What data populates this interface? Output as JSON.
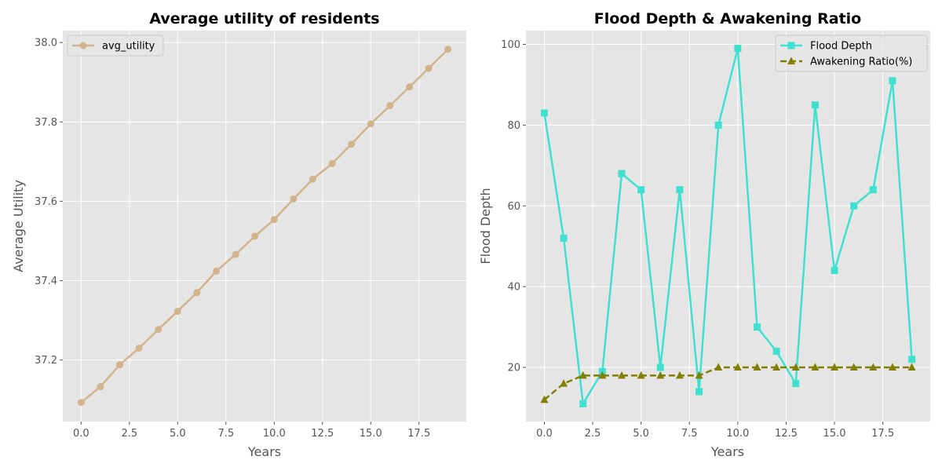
{
  "chart_data": [
    {
      "type": "line",
      "title": "Average utility of residents",
      "xlabel": "Years",
      "ylabel": "Average Utility",
      "xlim": [
        -0.95,
        19.95
      ],
      "ylim": [
        37.045,
        38.03
      ],
      "xticks": [
        0,
        2.5,
        5,
        7.5,
        10,
        12.5,
        15,
        17.5
      ],
      "xtick_labels": [
        "0.0",
        "2.5",
        "5.0",
        "7.5",
        "10.0",
        "12.5",
        "15.0",
        "17.5"
      ],
      "yticks": [
        37.2,
        37.4,
        37.6,
        37.8,
        38.0
      ],
      "ytick_labels": [
        "37.2",
        "37.4",
        "37.6",
        "37.8",
        "38.0"
      ],
      "grid": true,
      "legend_position": "upper-left",
      "x": [
        0,
        1,
        2,
        3,
        4,
        5,
        6,
        7,
        8,
        9,
        10,
        11,
        12,
        13,
        14,
        15,
        16,
        17,
        18,
        19
      ],
      "series": [
        {
          "name": "avg_utility",
          "color": "#d2b48c",
          "linestyle": "solid",
          "marker": "circle",
          "values": [
            37.093,
            37.133,
            37.188,
            37.23,
            37.277,
            37.323,
            37.37,
            37.424,
            37.466,
            37.512,
            37.554,
            37.606,
            37.656,
            37.695,
            37.744,
            37.795,
            37.841,
            37.888,
            37.935,
            37.983
          ]
        }
      ]
    },
    {
      "type": "line",
      "title": "Flood Depth & Awakening Ratio",
      "xlabel": "Years",
      "ylabel": "Flood Depth",
      "xlim": [
        -0.95,
        19.95
      ],
      "ylim": [
        6.6,
        103.4
      ],
      "xticks": [
        0,
        2.5,
        5,
        7.5,
        10,
        12.5,
        15,
        17.5
      ],
      "xtick_labels": [
        "0.0",
        "2.5",
        "5.0",
        "7.5",
        "10.0",
        "12.5",
        "15.0",
        "17.5"
      ],
      "yticks": [
        20,
        40,
        60,
        80,
        100
      ],
      "ytick_labels": [
        "20",
        "40",
        "60",
        "80",
        "100"
      ],
      "grid": true,
      "legend_position": "upper-right",
      "x": [
        0,
        1,
        2,
        3,
        4,
        5,
        6,
        7,
        8,
        9,
        10,
        11,
        12,
        13,
        14,
        15,
        16,
        17,
        18,
        19
      ],
      "series": [
        {
          "name": "Flood Depth",
          "color": "#40e0d0",
          "linestyle": "solid",
          "marker": "square",
          "values": [
            83,
            52,
            11,
            19,
            68,
            64,
            20,
            64,
            14,
            80,
            99,
            30,
            24,
            16,
            85,
            44,
            60,
            64,
            91,
            22
          ]
        },
        {
          "name": "Awakening Ratio(%)",
          "color": "#808000",
          "linestyle": "dashed",
          "marker": "triangle",
          "values": [
            12,
            16,
            18,
            18,
            18,
            18,
            18,
            18,
            18,
            20,
            20,
            20,
            20,
            20,
            20,
            20,
            20,
            20,
            20,
            20
          ]
        }
      ]
    }
  ]
}
